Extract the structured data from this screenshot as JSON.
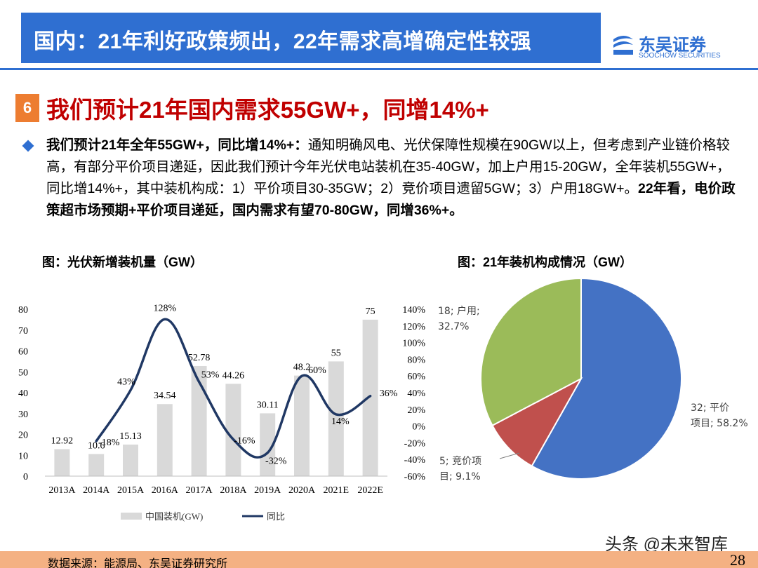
{
  "header": {
    "title": "国内：21年利好政策频出，22年需求高增确定性较强"
  },
  "logo": {
    "name_cn": "东吴证券",
    "name_en": "SOOCHOW SECURITIES",
    "color": "#2f6fd1"
  },
  "section": {
    "number": "6",
    "title": "我们预计21年国内需求55GW+，同增14%+"
  },
  "bullet": {
    "lead": "我们预计21年全年55GW+，同比增14%+：",
    "body": "通知明确风电、光伏保障性规模在90GW以上，但考虑到产业链价格较高，有部分平价项目递延，因此我们预计今年光伏电站装机在35-40GW，加上户用15-20GW，全年装机55GW+，同比增14%+，其中装机构成：1）平价项目30-35GW；2）竞价项目遗留5GW；3）户用18GW+。",
    "conclusion": "22年看，电价政策超市场预期+平价项目递延，国内需求有望70-80GW，同增36%+。"
  },
  "chart_titles": {
    "left": "图：光伏新增装机量（GW）",
    "right": "图：21年装机构成情况（GW）"
  },
  "chart_data": [
    {
      "type": "bar",
      "categories": [
        "2013A",
        "2014A",
        "2015A",
        "2016A",
        "2017A",
        "2018A",
        "2019A",
        "2020A",
        "2021E",
        "2022E"
      ],
      "series": [
        {
          "name": "中国装机(GW)",
          "type": "bar",
          "axis": "left",
          "color": "#d9d9d9",
          "values": [
            12.92,
            10.6,
            15.13,
            34.54,
            52.78,
            44.26,
            30.11,
            48.2,
            55,
            75
          ],
          "labels": [
            "12.92",
            "10.6",
            "15.13",
            "34.54",
            "52.78",
            "44.26",
            "30.11",
            "48.2",
            "55",
            "75"
          ]
        },
        {
          "name": "同比",
          "type": "line",
          "axis": "right",
          "color": "#203864",
          "values": [
            null,
            -18,
            43,
            128,
            53,
            -16,
            -32,
            60,
            14,
            36
          ],
          "labels": [
            "",
            "-18%",
            "43%",
            "128%",
            "53%",
            "-16%",
            "-32%",
            "60%",
            "14%",
            "36%"
          ]
        }
      ],
      "ylim": [
        0,
        80
      ],
      "yticks": [
        "0",
        "10",
        "20",
        "30",
        "40",
        "50",
        "60",
        "70",
        "80"
      ],
      "y2lim": [
        -60,
        140
      ],
      "y2ticks": [
        "-60%",
        "-40%",
        "-20%",
        "0%",
        "20%",
        "40%",
        "60%",
        "80%",
        "100%",
        "120%",
        "140%"
      ],
      "legend": "bottom"
    },
    {
      "type": "pie",
      "slices": [
        {
          "name": "平价项目",
          "value": 32,
          "percent": "58.2%",
          "label": "32; 平价项目; 58.2%",
          "color": "#4472c4"
        },
        {
          "name": "竞价项目",
          "value": 5,
          "percent": "9.1%",
          "label": "5; 竞价项目; 9.1%",
          "color": "#c0504d"
        },
        {
          "name": "户用",
          "value": 18,
          "percent": "32.7%",
          "label": "18; 户用; 32.7%",
          "color": "#9bbb59"
        }
      ]
    }
  ],
  "footer": {
    "source": "数据来源：能源局、东吴证券研究所",
    "page": "28"
  },
  "watermark": {
    "text": "头条 @未来智库"
  }
}
